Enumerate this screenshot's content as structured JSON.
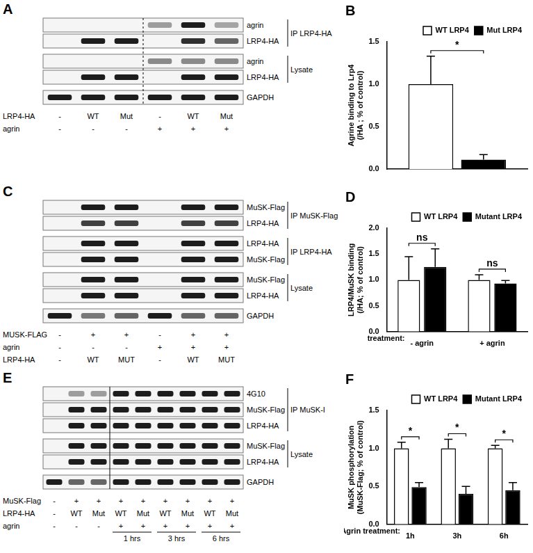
{
  "chart_data": [
    {
      "type": "bar",
      "title": "B",
      "categories": [
        null
      ],
      "ylabel": [
        "Agrine binding to Lrp4",
        "(/HA ; % of control)"
      ],
      "series": [
        {
          "name": "WT LRP4",
          "color": "#ffffff",
          "values": [
            1.0
          ],
          "errors": [
            0.33
          ]
        },
        {
          "name": "Mut LRP4",
          "color": "#000000",
          "values": [
            0.11
          ],
          "errors": [
            0.06
          ]
        }
      ],
      "ylim": [
        0,
        1.5
      ],
      "yticks": [
        {
          "value": 0,
          "label": "0.0"
        },
        0.5,
        {
          "value": 1,
          "label": "1.0"
        },
        1.5
      ],
      "grid": false,
      "legend": "upper right",
      "tick_labels": "y",
      "annotations": [
        {
          "text": "*",
          "category": 0
        }
      ]
    },
    {
      "type": "bar",
      "title": "D",
      "categories": [
        "- agrin",
        "+ agrin"
      ],
      "xlabel": "treatment:",
      "ylabel": [
        "LRP4/MuSK binding",
        "(/HA; % of control)"
      ],
      "series": [
        {
          "name": "WT LRP4",
          "color": "#ffffff",
          "values": [
            1.0,
            1.0
          ],
          "errors": [
            0.45,
            0.1
          ]
        },
        {
          "name": "Mutant LRP4",
          "color": "#000000",
          "values": [
            1.25,
            0.93
          ],
          "errors": [
            0.35,
            0.06
          ]
        }
      ],
      "ylim": [
        0,
        2
      ],
      "yticks": [
        {
          "value": 0,
          "label": "0.0"
        },
        0.5,
        {
          "value": 1,
          "label": "1.0"
        },
        1.5,
        {
          "value": 2,
          "label": "2.0"
        }
      ],
      "grid": false,
      "legend": "upper right",
      "annotations": [
        {
          "text": "ns",
          "category": 0
        },
        {
          "text": "ns",
          "category": 1
        }
      ]
    },
    {
      "type": "bar",
      "title": "F",
      "categories": [
        "1h",
        "3h",
        "6h"
      ],
      "xlabel": "Agrin treatment:",
      "ylabel": [
        "MuSK phosphorylation",
        "(MuSK-Flag; % of control)"
      ],
      "series": [
        {
          "name": "WT LRP4",
          "color": "#ffffff",
          "values": [
            1.0,
            1.0,
            1.0
          ],
          "errors": [
            0.08,
            0.12,
            0.04
          ]
        },
        {
          "name": "Mutant LRP4",
          "color": "#000000",
          "values": [
            0.49,
            0.4,
            0.45
          ],
          "errors": [
            0.06,
            0.1,
            0.1
          ]
        }
      ],
      "ylim": [
        0,
        1.5
      ],
      "yticks": [
        {
          "value": 0,
          "label": "0.0"
        },
        0.5,
        {
          "value": 1,
          "label": "1.0"
        },
        1.5
      ],
      "grid": false,
      "legend": "upper right",
      "annotations": [
        {
          "text": "*",
          "category": 0
        },
        {
          "text": "*",
          "category": 1
        },
        {
          "text": "*",
          "category": 2
        }
      ]
    }
  ],
  "blots": [
    {
      "panel": "A",
      "groups": [
        {
          "label": "IP LRP4-HA",
          "rows": [
            "agrin",
            "LRP4-HA"
          ]
        },
        {
          "label": "Lysate",
          "rows": [
            "agrin",
            "LRP4-HA"
          ]
        },
        {
          "rows": [
            "GAPDH"
          ]
        }
      ],
      "conditions": [
        {
          "label": "LRP4-HA",
          "lanes": [
            "-",
            "WT",
            "Mut",
            "-",
            "WT",
            "Mut"
          ]
        },
        {
          "label": "agrin",
          "lanes": [
            "-",
            "-",
            "-",
            "+",
            "+",
            "+"
          ]
        }
      ]
    },
    {
      "panel": "C",
      "groups": [
        {
          "label": "IP MuSK-Flag",
          "rows": [
            "MuSK-Flag",
            "LRP4-HA"
          ]
        },
        {
          "label": "IP LRP4-HA",
          "rows": [
            "LRP4-HA",
            "MuSK-Flag"
          ]
        },
        {
          "label": "Lysate",
          "rows": [
            "MuSK-Flag",
            "LRP4-HA"
          ]
        },
        {
          "rows": [
            "GAPDH"
          ]
        }
      ],
      "conditions": [
        {
          "label": "MUSK-FLAG",
          "lanes": [
            "-",
            "+",
            "+",
            "-",
            "+",
            "+"
          ]
        },
        {
          "label": "agrin",
          "lanes": [
            "-",
            "-",
            "-",
            "+",
            "+",
            "+"
          ]
        },
        {
          "label": "LRP4-HA",
          "lanes": [
            "-",
            "WT",
            "MUT",
            "-",
            "WT",
            "MUT"
          ]
        }
      ]
    },
    {
      "panel": "E",
      "groups": [
        {
          "label": "IP MuSK-I",
          "rows": [
            "4G10",
            "MuSK-Flag",
            "LRP4-HA"
          ]
        },
        {
          "label": "Lysate",
          "rows": [
            "MuSK-Flag",
            "LRP4-HA"
          ]
        },
        {
          "rows": [
            "GAPDH"
          ]
        }
      ],
      "conditions": [
        {
          "label": "MuSK-Flag",
          "lanes": [
            "-",
            "+",
            "+",
            "+",
            "+",
            "+",
            "+",
            "+",
            "+"
          ]
        },
        {
          "label": "LRP4-HA",
          "lanes": [
            "-",
            "WT",
            "Mut",
            "WT",
            "Mut",
            "WT",
            "Mut",
            "WT",
            "Mut"
          ]
        },
        {
          "label": "agrin",
          "lanes": [
            "-",
            "-",
            "-",
            "+",
            "+",
            "+",
            "+",
            "+",
            "+"
          ]
        }
      ],
      "time_groups": [
        {
          "label": "1 hrs",
          "lanes": [
            3,
            4
          ]
        },
        {
          "label": "3 hrs",
          "lanes": [
            5,
            6
          ]
        },
        {
          "label": "6 hrs",
          "lanes": [
            7,
            8
          ]
        }
      ]
    }
  ]
}
